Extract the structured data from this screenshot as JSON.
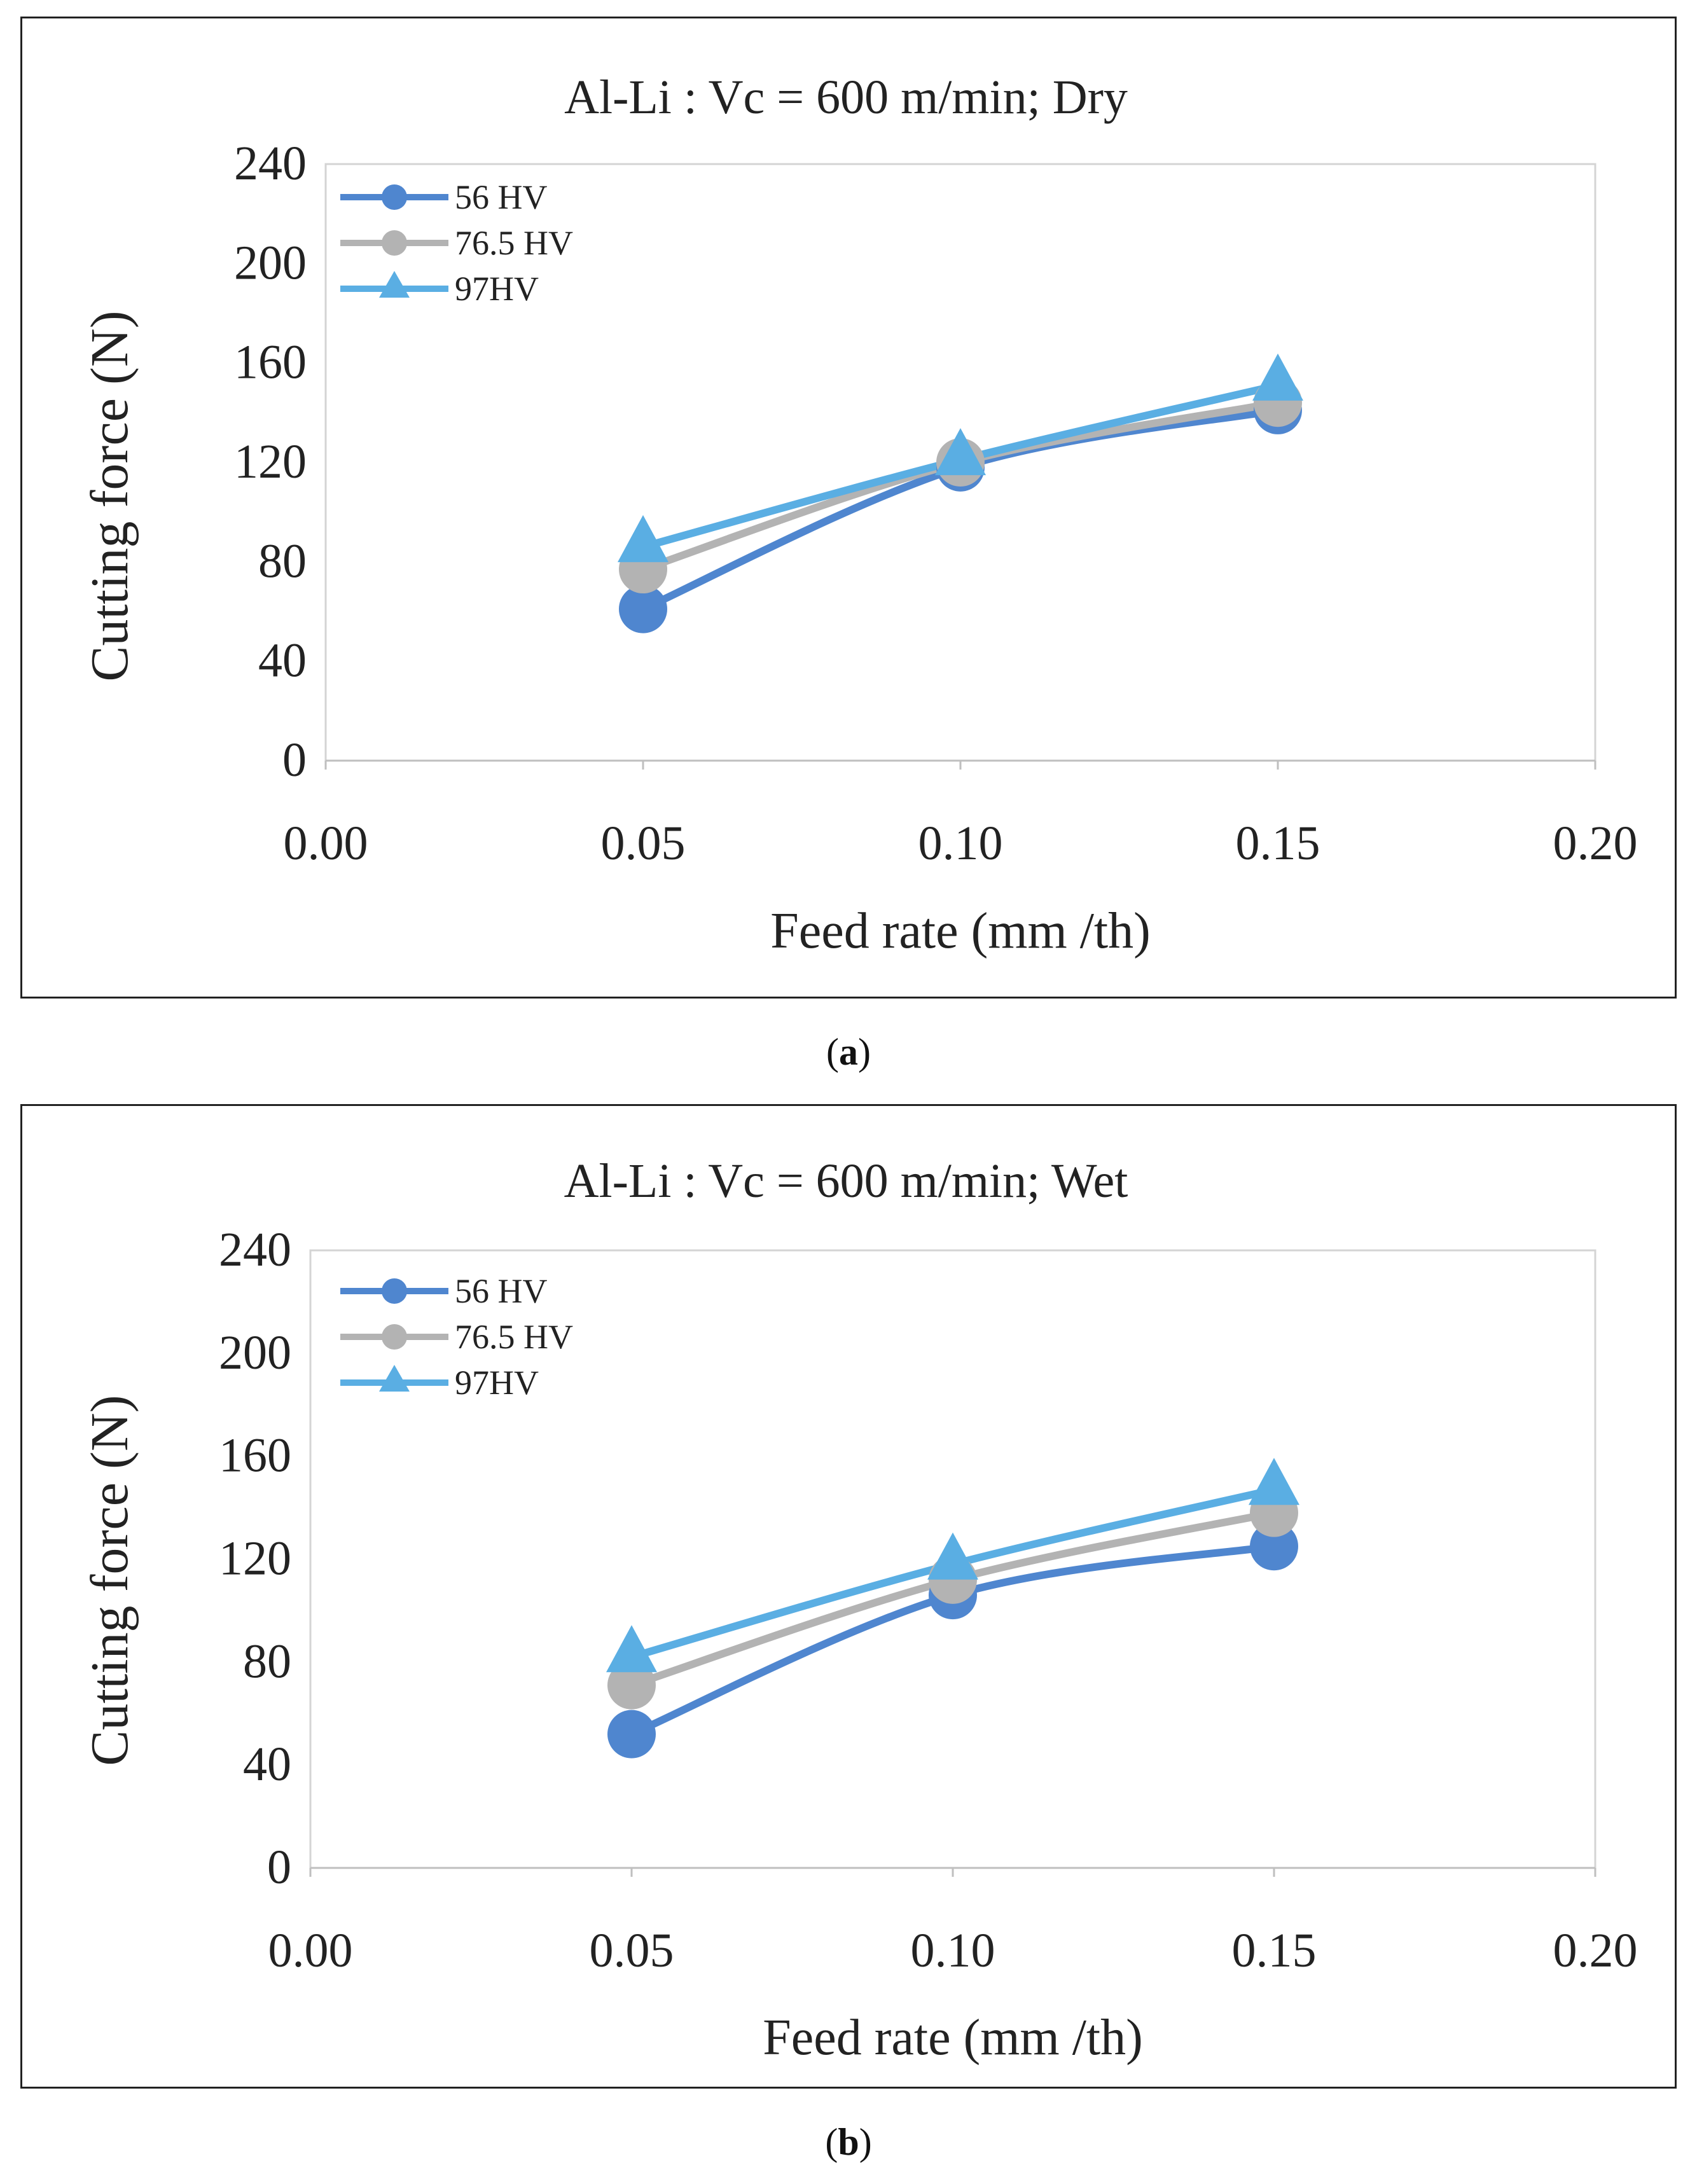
{
  "figure": {
    "panels": [
      {
        "label": "a",
        "caption_open": "(",
        "caption_close": ")"
      },
      {
        "label": "b",
        "caption_open": "(",
        "caption_close": ")"
      }
    ]
  },
  "chart_data": [
    {
      "type": "line",
      "title": "Al-Li : Vc = 600 m/min;  Dry",
      "xlabel": "Feed rate (mm /th)",
      "ylabel": "Cutting force (N)",
      "xlim": [
        0.0,
        0.2
      ],
      "ylim": [
        0,
        240
      ],
      "xticks": [
        0.0,
        0.05,
        0.1,
        0.15,
        0.2
      ],
      "xtick_labels": [
        "0.00",
        "0.05",
        "0.10",
        "0.15",
        "0.20"
      ],
      "yticks": [
        0,
        40,
        80,
        120,
        160,
        200,
        240
      ],
      "ytick_labels": [
        "0",
        "40",
        "80",
        "120",
        "160",
        "200",
        "240"
      ],
      "legend_position": "top-left",
      "grid": false,
      "series": [
        {
          "name": "56 HV",
          "marker": "circle",
          "color": "#4f86cf",
          "x": [
            0.05,
            0.1,
            0.15
          ],
          "values": [
            61,
            118,
            141
          ]
        },
        {
          "name": "76.5 HV",
          "marker": "circle",
          "color": "#b3b3b3",
          "x": [
            0.05,
            0.1,
            0.15
          ],
          "values": [
            77,
            120,
            144
          ]
        },
        {
          "name": "97HV",
          "marker": "triangle",
          "color": "#5aaee3",
          "x": [
            0.05,
            0.1,
            0.15
          ],
          "values": [
            86,
            121,
            151
          ]
        }
      ]
    },
    {
      "type": "line",
      "title": "Al-Li : Vc = 600 m/min;  Wet",
      "xlabel": "Feed rate (mm /th)",
      "ylabel": "Cutting force (N)",
      "xlim": [
        0.0,
        0.2
      ],
      "ylim": [
        0,
        240
      ],
      "xticks": [
        0.0,
        0.05,
        0.1,
        0.15,
        0.2
      ],
      "xtick_labels": [
        "0.00",
        "0.05",
        "0.10",
        "0.15",
        "0.20"
      ],
      "yticks": [
        0,
        40,
        80,
        120,
        160,
        200,
        240
      ],
      "ytick_labels": [
        "0",
        "40",
        "80",
        "120",
        "160",
        "200",
        "240"
      ],
      "legend_position": "top-left",
      "grid": false,
      "series": [
        {
          "name": "56 HV",
          "marker": "circle",
          "color": "#4f86cf",
          "x": [
            0.05,
            0.1,
            0.15
          ],
          "values": [
            52,
            106,
            125
          ]
        },
        {
          "name": "76.5 HV",
          "marker": "circle",
          "color": "#b3b3b3",
          "x": [
            0.05,
            0.1,
            0.15
          ],
          "values": [
            71,
            112,
            138
          ]
        },
        {
          "name": "97HV",
          "marker": "triangle",
          "color": "#5aaee3",
          "x": [
            0.05,
            0.1,
            0.15
          ],
          "values": [
            82,
            118,
            147
          ]
        }
      ]
    }
  ]
}
